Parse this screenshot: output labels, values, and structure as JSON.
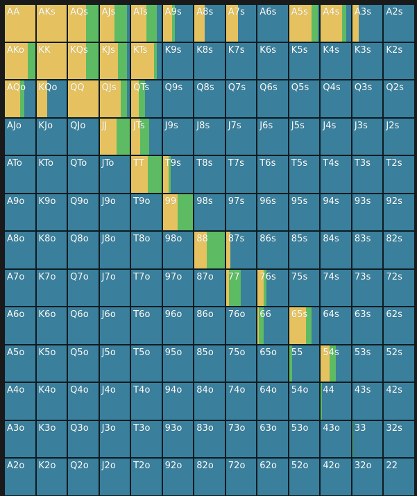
{
  "colors": {
    "fold": "#3a7f9b",
    "raise": "#e5c25f",
    "call": "#5dbb63"
  },
  "ranks": [
    "A",
    "K",
    "Q",
    "J",
    "T",
    "9",
    "8",
    "7",
    "6",
    "5",
    "4",
    "3",
    "2"
  ],
  "hands": [
    [
      "AA",
      "AKs",
      "AQs",
      "AJs",
      "ATs",
      "A9s",
      "A8s",
      "A7s",
      "A6s",
      "A5s",
      "A4s",
      "A3s",
      "A2s"
    ],
    [
      "AKo",
      "KK",
      "KQs",
      "KJs",
      "KTs",
      "K9s",
      "K8s",
      "K7s",
      "K6s",
      "K5s",
      "K4s",
      "K3s",
      "K2s"
    ],
    [
      "AQo",
      "KQo",
      "QQ",
      "QJs",
      "QTs",
      "Q9s",
      "Q8s",
      "Q7s",
      "Q6s",
      "Q5s",
      "Q4s",
      "Q3s",
      "Q2s"
    ],
    [
      "AJo",
      "KJo",
      "QJo",
      "JJ",
      "JTs",
      "J9s",
      "J8s",
      "J7s",
      "J6s",
      "J5s",
      "J4s",
      "J3s",
      "J2s"
    ],
    [
      "ATo",
      "KTo",
      "QTo",
      "JTo",
      "TT",
      "T9s",
      "T8s",
      "T7s",
      "T6s",
      "T5s",
      "T4s",
      "T3s",
      "T2s"
    ],
    [
      "A9o",
      "K9o",
      "Q9o",
      "J9o",
      "T9o",
      "99",
      "98s",
      "97s",
      "96s",
      "95s",
      "94s",
      "93s",
      "92s"
    ],
    [
      "A8o",
      "K8o",
      "Q8o",
      "J8o",
      "T8o",
      "98o",
      "88",
      "87s",
      "86s",
      "85s",
      "84s",
      "83s",
      "82s"
    ],
    [
      "A7o",
      "K7o",
      "Q7o",
      "J7o",
      "T7o",
      "97o",
      "87o",
      "77",
      "76s",
      "75s",
      "74s",
      "73s",
      "72s"
    ],
    [
      "A6o",
      "K6o",
      "Q6o",
      "J6o",
      "T6o",
      "96o",
      "86o",
      "76o",
      "66",
      "65s",
      "64s",
      "63s",
      "62s"
    ],
    [
      "A5o",
      "K5o",
      "Q5o",
      "J5o",
      "T5o",
      "95o",
      "85o",
      "75o",
      "65o",
      "55",
      "54s",
      "53s",
      "52s"
    ],
    [
      "A4o",
      "K4o",
      "Q4o",
      "J4o",
      "T4o",
      "94o",
      "84o",
      "74o",
      "64o",
      "54o",
      "44",
      "43s",
      "42s"
    ],
    [
      "A3o",
      "K3o",
      "Q3o",
      "J3o",
      "T3o",
      "93o",
      "83o",
      "73o",
      "63o",
      "53o",
      "43o",
      "33",
      "32s"
    ],
    [
      "A2o",
      "K2o",
      "Q2o",
      "J2o",
      "T2o",
      "92o",
      "82o",
      "72o",
      "62o",
      "52o",
      "42o",
      "32o",
      "22"
    ]
  ],
  "frequencies": {
    "AA": {
      "raise": 1.0,
      "call": 0.0
    },
    "AKs": {
      "raise": 1.0,
      "call": 0.0
    },
    "AQs": {
      "raise": 0.6,
      "call": 0.4
    },
    "AJs": {
      "raise": 0.5,
      "call": 0.4
    },
    "ATs": {
      "raise": 0.5,
      "call": 0.35
    },
    "A9s": {
      "raise": 0.3,
      "call": 0.1
    },
    "A8s": {
      "raise": 0.35,
      "call": 0.0
    },
    "A7s": {
      "raise": 0.4,
      "call": 0.0
    },
    "A5s": {
      "raise": 0.75,
      "call": 0.2
    },
    "A4s": {
      "raise": 0.7,
      "call": 0.15
    },
    "A3s": {
      "raise": 0.2,
      "call": 0.0
    },
    "AKo": {
      "raise": 0.75,
      "call": 0.25
    },
    "KK": {
      "raise": 1.0,
      "call": 0.0
    },
    "KQs": {
      "raise": 0.6,
      "call": 0.4
    },
    "KJs": {
      "raise": 0.6,
      "call": 0.3
    },
    "KTs": {
      "raise": 0.75,
      "call": 0.1
    },
    "AQo": {
      "raise": 0.5,
      "call": 0.15
    },
    "KQo": {
      "raise": 0.35,
      "call": 0.0
    },
    "QQ": {
      "raise": 1.0,
      "call": 0.0
    },
    "QJs": {
      "raise": 0.7,
      "call": 0.2
    },
    "QTs": {
      "raise": 0.25,
      "call": 0.2
    },
    "JJ": {
      "raise": 0.55,
      "call": 0.45
    },
    "JTs": {
      "raise": 0.3,
      "call": 0.3
    },
    "TT": {
      "raise": 0.55,
      "call": 0.45
    },
    "T9s": {
      "raise": 0.2,
      "call": 0.05
    },
    "99": {
      "raise": 0.5,
      "call": 0.5
    },
    "88": {
      "raise": 0.4,
      "call": 0.6
    },
    "87s": {
      "raise": 0.15,
      "call": 0.0
    },
    "77": {
      "raise": 0.1,
      "call": 0.4
    },
    "76s": {
      "raise": 0.2,
      "call": 0.1
    },
    "66": {
      "raise": 0.05,
      "call": 0.15
    },
    "65s": {
      "raise": 0.55,
      "call": 0.2
    },
    "55": {
      "raise": 0.0,
      "call": 0.1
    },
    "54s": {
      "raise": 0.3,
      "call": 0.2
    },
    "44": {
      "raise": 0.0,
      "call": 0.05
    },
    "33": {
      "raise": 0.0,
      "call": 0.03
    }
  }
}
